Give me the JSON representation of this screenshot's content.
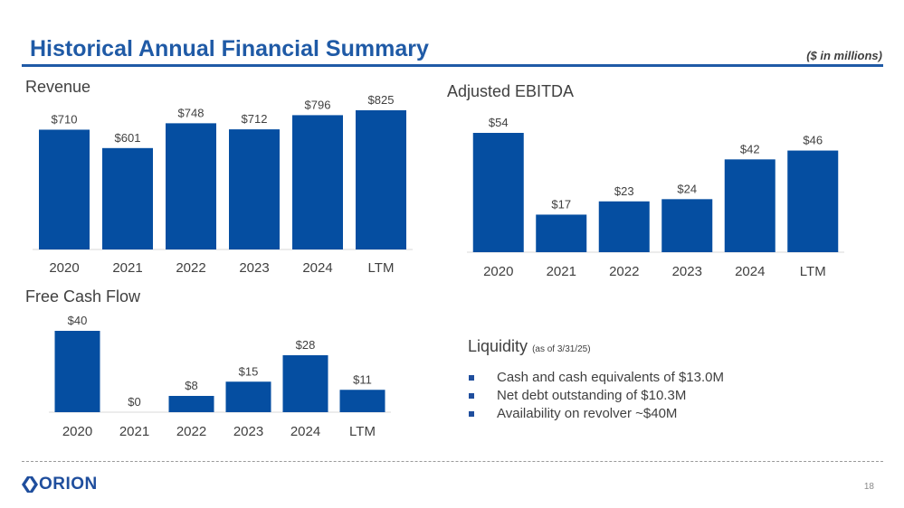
{
  "page": {
    "title": "Historical Annual Financial Summary",
    "units": "($ in millions)",
    "page_number": "18",
    "logo_text": "ORION"
  },
  "colors": {
    "bar": "#054ea1",
    "title": "#1f5aa6",
    "axis": "#d9d9d9"
  },
  "liquidity": {
    "title": "Liquidity",
    "subtitle": "(as of 3/31/25)",
    "items": [
      "Cash and cash equivalents of $13.0M",
      "Net debt outstanding of $10.3M",
      "Availability on revolver ~$40M"
    ]
  },
  "chart_data": [
    {
      "id": "revenue",
      "type": "bar",
      "title": "Revenue",
      "categories": [
        "2020",
        "2021",
        "2022",
        "2023",
        "2024",
        "LTM"
      ],
      "values": [
        710,
        601,
        748,
        712,
        796,
        825
      ],
      "labels": [
        "$710",
        "$601",
        "$748",
        "$712",
        "$796",
        "$825"
      ],
      "ylim": [
        0,
        825
      ]
    },
    {
      "id": "ebitda",
      "type": "bar",
      "title": "Adjusted EBITDA",
      "categories": [
        "2020",
        "2021",
        "2022",
        "2023",
        "2024",
        "LTM"
      ],
      "values": [
        54,
        17,
        23,
        24,
        42,
        46
      ],
      "labels": [
        "$54",
        "$17",
        "$23",
        "$24",
        "$42",
        "$46"
      ],
      "ylim": [
        0,
        54
      ]
    },
    {
      "id": "fcf",
      "type": "bar",
      "title": "Free Cash Flow",
      "categories": [
        "2020",
        "2021",
        "2022",
        "2023",
        "2024",
        "LTM"
      ],
      "values": [
        40,
        0,
        8,
        15,
        28,
        11
      ],
      "labels": [
        "$40",
        "$0",
        "$8",
        "$15",
        "$28",
        "$11"
      ],
      "ylim": [
        0,
        40
      ]
    }
  ]
}
